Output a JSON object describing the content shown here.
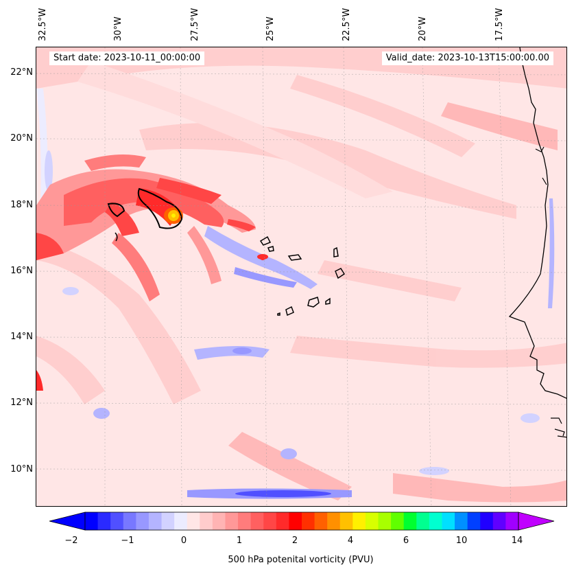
{
  "header": {
    "start_date": "Start date: 2023-10-11_00:00:00",
    "valid_date": "Valid_date: 2023-10-13T15:00:00.00"
  },
  "axes": {
    "lon_labels": [
      "32.5°W",
      "30°W",
      "27.5°W",
      "25°W",
      "22.5°W",
      "20°W",
      "17.5°W"
    ],
    "lat_labels": [
      "22°N",
      "20°N",
      "18°N",
      "16°N",
      "14°N",
      "12°N",
      "10°N"
    ]
  },
  "colorbar": {
    "tick_labels": [
      "−2",
      "−1",
      "0",
      "1",
      "2",
      "4",
      "6",
      "10",
      "14"
    ],
    "label": "500 hPa potenital vorticity (PVU)",
    "colors": [
      "#0000ff",
      "#2a2aff",
      "#5050ff",
      "#7878ff",
      "#9898ff",
      "#b4b4ff",
      "#d2d2ff",
      "#ececff",
      "#ffe6e6",
      "#ffcccc",
      "#ffb4b4",
      "#ff9898",
      "#ff7c7c",
      "#ff6060",
      "#ff4646",
      "#ff2a2a",
      "#ff0000",
      "#ff3000",
      "#ff6000",
      "#ff9000",
      "#ffc000",
      "#fff000",
      "#d8ff00",
      "#a8ff00",
      "#60ff00",
      "#00ff30",
      "#00ff90",
      "#00ffd0",
      "#00e0ff",
      "#0090ff",
      "#0040ff",
      "#2000ff",
      "#6000ff",
      "#a000ff"
    ],
    "extend_min_color": "#0000ff",
    "extend_max_color": "#c000ff"
  },
  "map": {
    "background_color": "#ffe6e6",
    "coastline_color": "#000000"
  }
}
